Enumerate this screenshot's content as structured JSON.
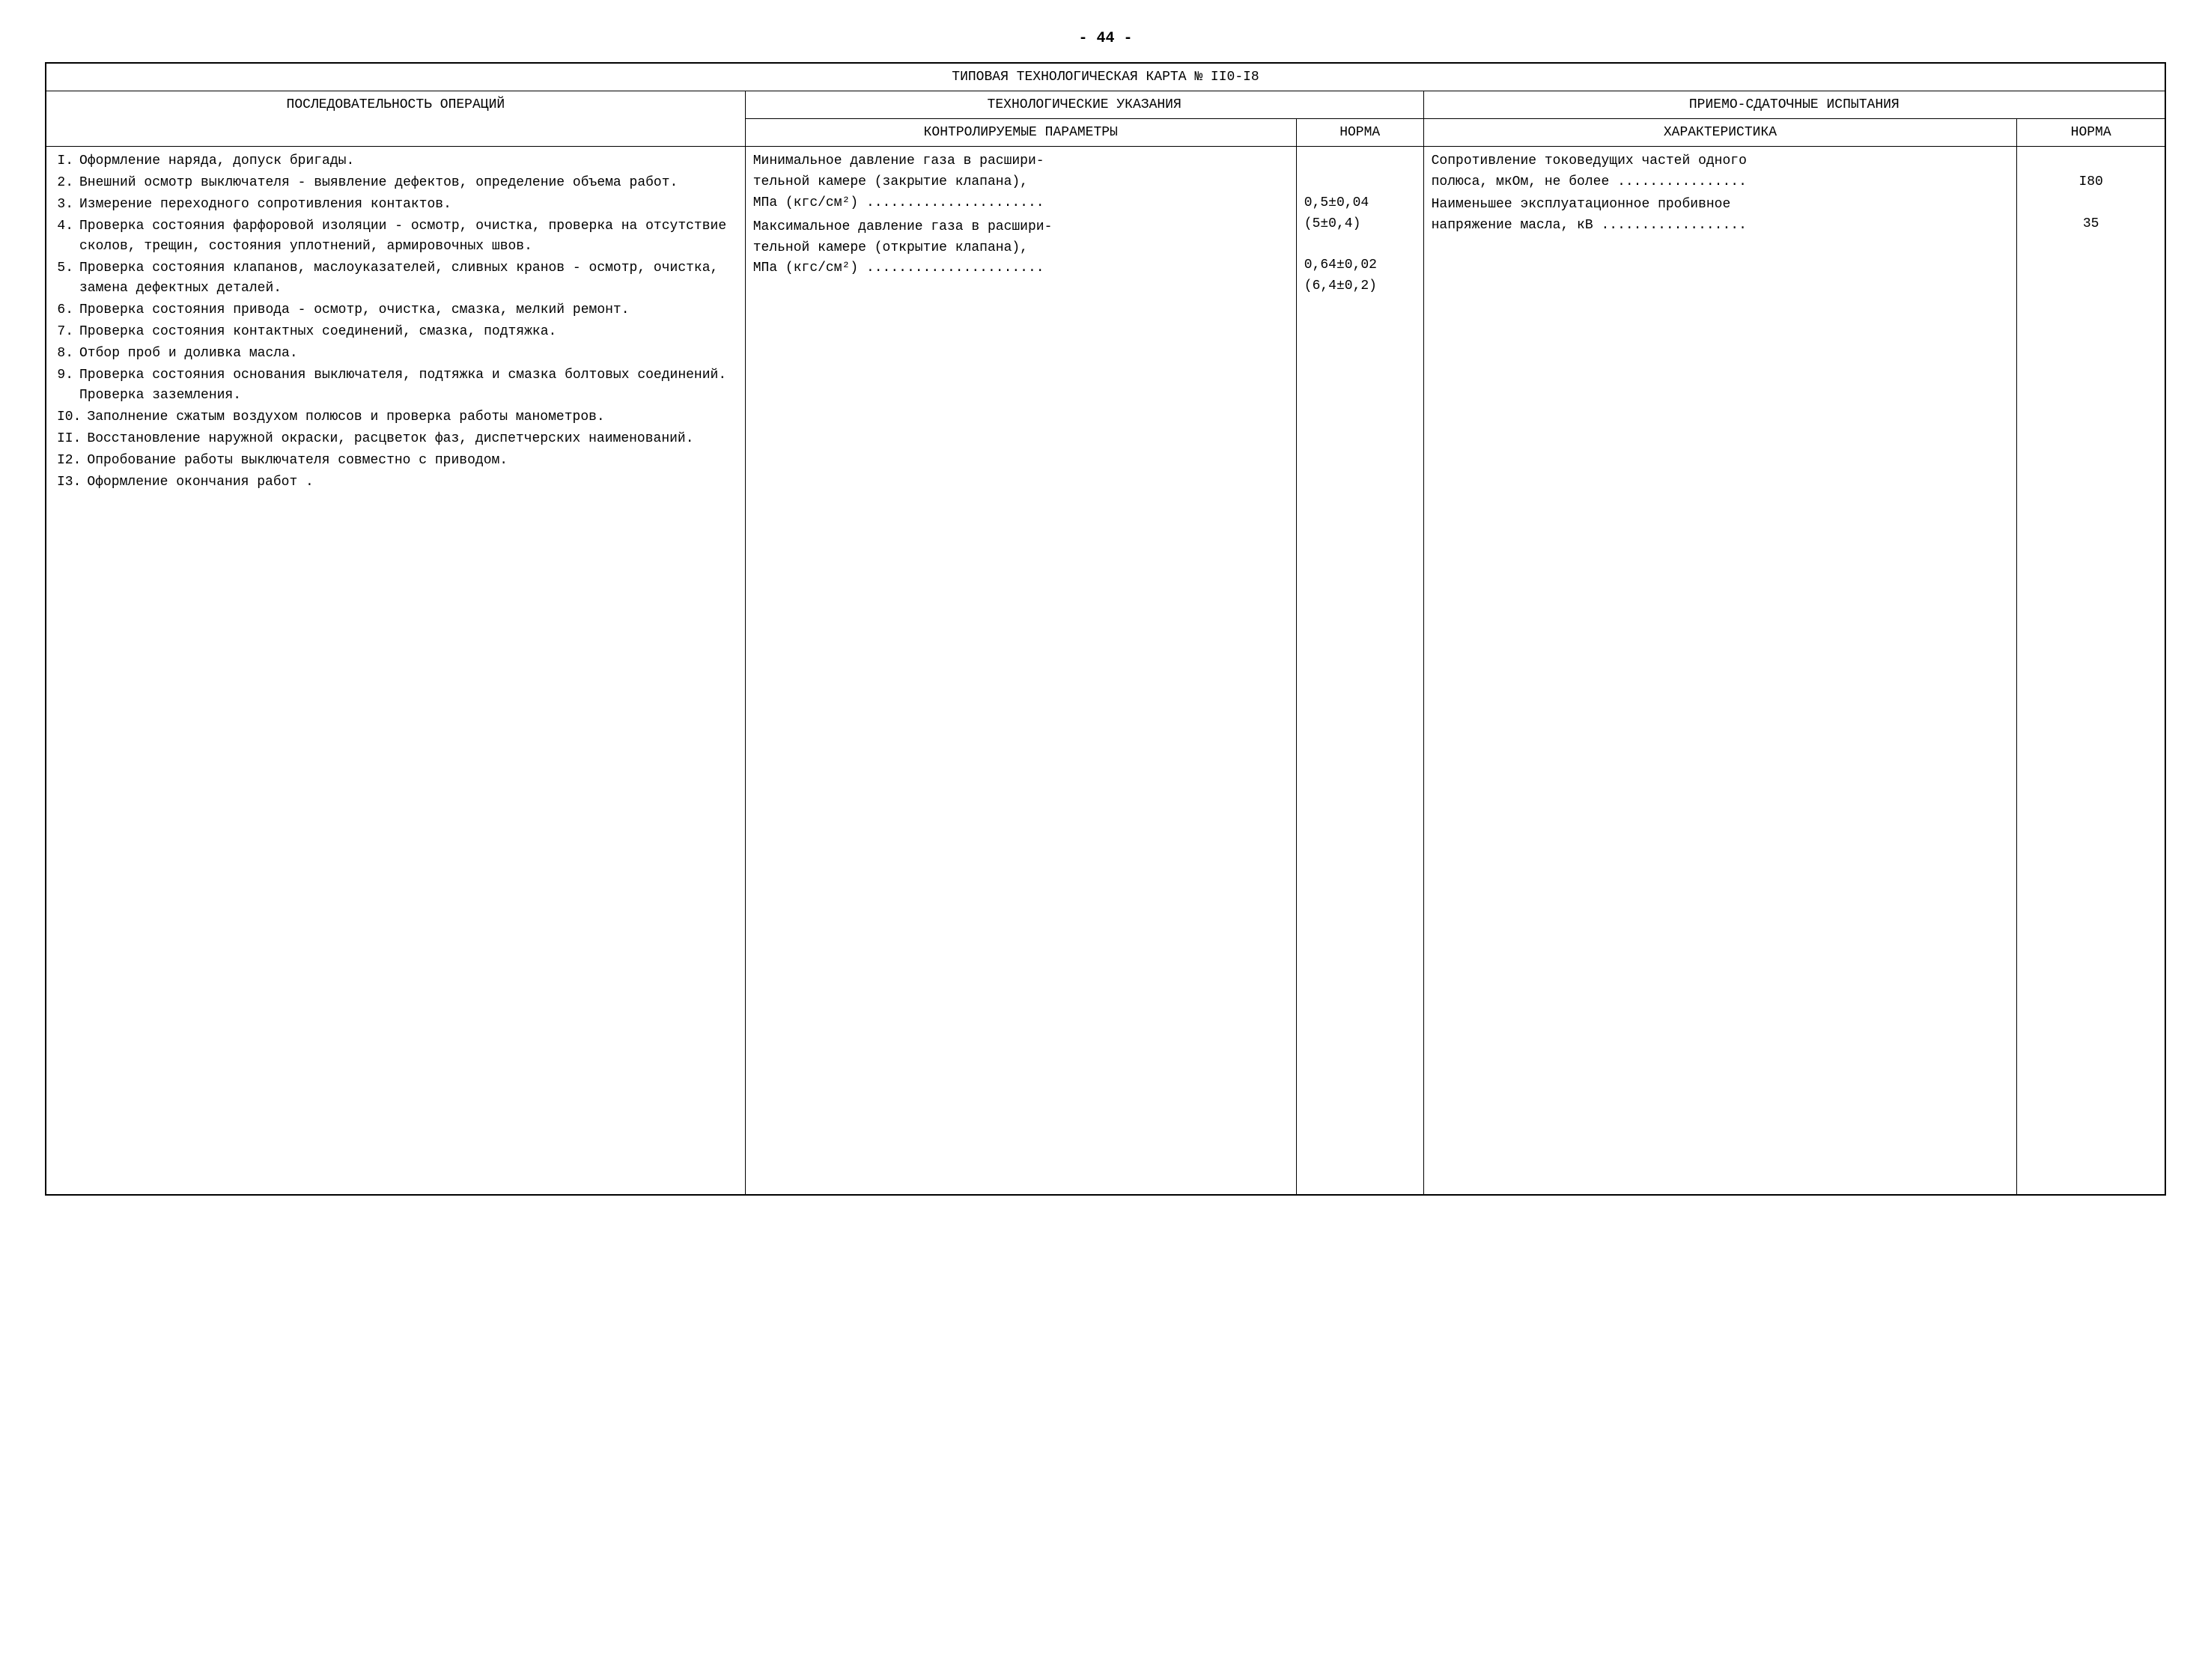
{
  "page_number": "- 44 -",
  "title": "ТИПОВАЯ ТЕХНОЛОГИЧЕСКАЯ КАРТА № II0-I8",
  "headers": {
    "operations": "ПОСЛЕДОВАТЕЛЬНОСТЬ ОПЕРАЦИЙ",
    "tech_instructions": "ТЕХНОЛОГИЧЕСКИЕ УКАЗАНИЯ",
    "controlled_params": "КОНТРОЛИРУЕМЫЕ ПАРАМЕТРЫ",
    "norma": "НОРМА",
    "acceptance_tests": "ПРИЕМО-СДАТОЧНЫЕ ИСПЫТАНИЯ",
    "characteristic": "ХАРАКТЕРИСТИКА"
  },
  "operations": [
    {
      "num": "I.",
      "text": "Оформление наряда, допуск бригады."
    },
    {
      "num": "2.",
      "text": "Внешний осмотр выключателя - выявление дефектов, определение объема работ."
    },
    {
      "num": "3.",
      "text": "Измерение переходного сопротивления контактов."
    },
    {
      "num": "4.",
      "text": "Проверка состояния фарфоровой изоляции - осмотр, очистка, проверка на отсутствие сколов, трещин, состояния уплотнений, армировочных швов."
    },
    {
      "num": "5.",
      "text": "Проверка состояния клапанов, маслоуказателей, сливных кранов - осмотр, очистка, замена дефектных деталей."
    },
    {
      "num": "6.",
      "text": "Проверка состояния привода - осмотр, очистка, смазка, мелкий ремонт."
    },
    {
      "num": "7.",
      "text": "Проверка состояния контактных соединений, смазка, подтяжка."
    },
    {
      "num": "8.",
      "text": "Отбор проб и доливка масла."
    },
    {
      "num": "9.",
      "text": "Проверка состояния основания выключателя, подтяжка и смазка болтовых соединений. Проверка заземления."
    },
    {
      "num": "I0.",
      "text": "Заполнение сжатым воздухом полюсов и проверка работы манометров."
    },
    {
      "num": "II.",
      "text": "Восстановление наружной окраски, расцветок фаз, диспетчерских наименований."
    },
    {
      "num": "I2.",
      "text": "Опробование работы выключателя совместно с приводом."
    },
    {
      "num": "I3.",
      "text": "Оформление окончания работ ."
    }
  ],
  "params": [
    {
      "text_l1": "Минимальное давление газа в расшири-",
      "text_l2": "тельной камере (закрытие клапана),",
      "text_l3": "МПа (кгс/см²) ......................",
      "norma_l1": "",
      "norma_l2": "",
      "norma_l3": "0,5±0,04",
      "norma_l4": "(5±0,4)"
    },
    {
      "text_l1": "Максимальное давление газа в расшири-",
      "text_l2": "тельной камере (открытие клапана),",
      "text_l3": "МПа (кгс/см²) ......................",
      "norma_l1": "",
      "norma_l2": "",
      "norma_l3": "0,64±0,02",
      "norma_l4": "(6,4±0,2)"
    }
  ],
  "characteristics": [
    {
      "text_l1": "Сопротивление токоведущих частей одного",
      "text_l2": "полюса, мкОм, не более ................",
      "norma": "I80"
    },
    {
      "text_l1": "Наименьшее эксплуатационное пробивное",
      "text_l2": "напряжение масла, кВ ..................",
      "norma": "35"
    }
  ]
}
